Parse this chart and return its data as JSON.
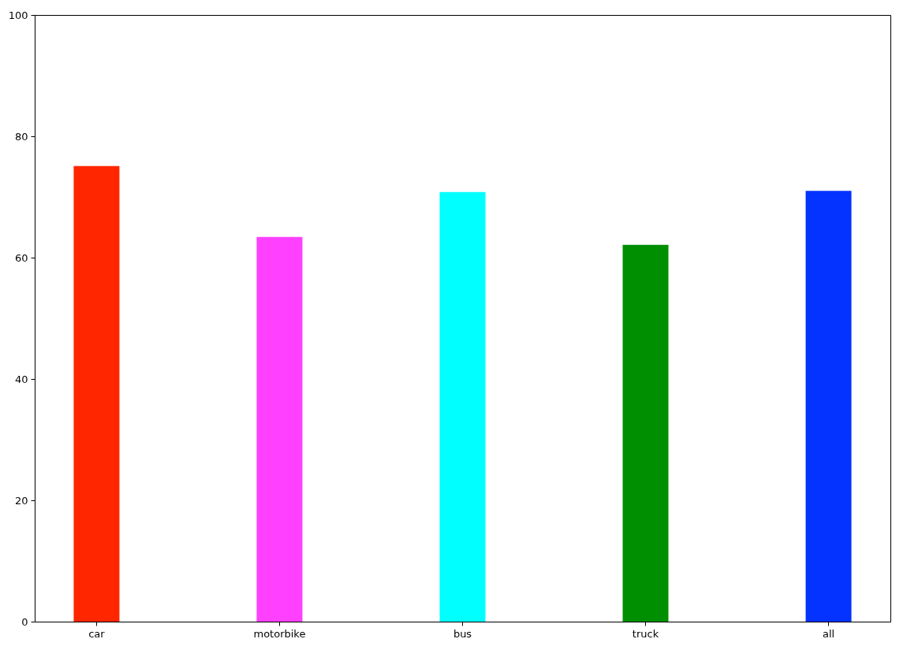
{
  "chart_data": {
    "type": "bar",
    "categories": [
      "car",
      "motorbike",
      "bus",
      "truck",
      "all"
    ],
    "values": [
      75.1,
      63.4,
      70.8,
      62.1,
      71.0
    ],
    "colors": [
      "#ff2600",
      "#ff40ff",
      "#00ffff",
      "#008f00",
      "#0433ff"
    ],
    "ylim": [
      0,
      100
    ],
    "yticks": [
      0,
      20,
      40,
      60,
      80,
      100
    ]
  }
}
